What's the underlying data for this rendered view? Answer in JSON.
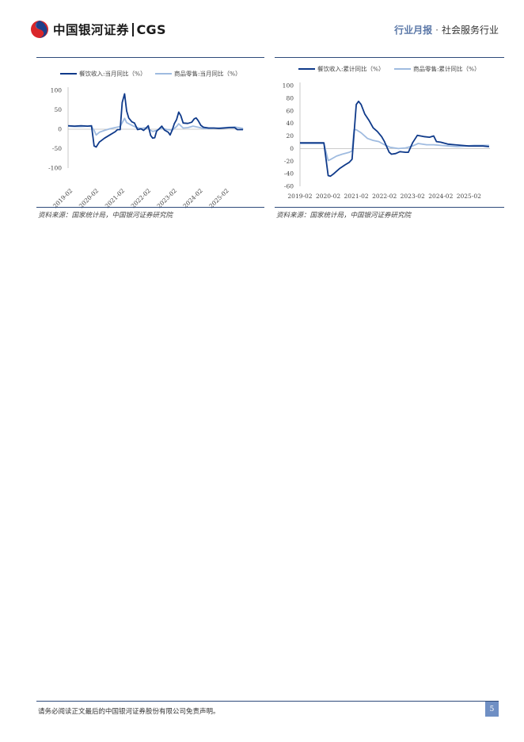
{
  "header": {
    "logo_cn": "中国银河证券",
    "logo_en": "CGS",
    "report_type": "行业月报",
    "dot": "·",
    "industry": "社会服务行业"
  },
  "colors": {
    "dark": "#0f3a8a",
    "light": "#9fbbe0",
    "rule": "#2d4a7a"
  },
  "charts": [
    {
      "source": "资料来源：国家统计局，中国银河证券研究院"
    },
    {
      "source": "资料来源：国家统计局，中国银河证券研究院"
    }
  ],
  "chart_data": [
    {
      "type": "line",
      "ylim": [
        -100,
        100
      ],
      "yticks": [
        100,
        50,
        0,
        -50,
        -100
      ],
      "xrange": [
        2019.0,
        2025.75
      ],
      "xticks": [
        {
          "x": 2019.0,
          "label": "2019-02"
        },
        {
          "x": 2020.0,
          "label": "2020-02"
        },
        {
          "x": 2021.0,
          "label": "2021-02"
        },
        {
          "x": 2022.0,
          "label": "2022-02"
        },
        {
          "x": 2023.0,
          "label": "2023-02"
        },
        {
          "x": 2024.0,
          "label": "2024-02"
        },
        {
          "x": 2025.0,
          "label": "2025-02"
        }
      ],
      "tick_rotation": -45,
      "legend_position": "top",
      "series": [
        {
          "name": "餐饮收入:当月同比（%）",
          "color": "#0f3a8a",
          "points": [
            [
              2019.0,
              9
            ],
            [
              2019.25,
              8
            ],
            [
              2019.5,
              9
            ],
            [
              2019.75,
              8
            ],
            [
              2019.9,
              9
            ],
            [
              2020.0,
              -43
            ],
            [
              2020.08,
              -46
            ],
            [
              2020.2,
              -33
            ],
            [
              2020.4,
              -23
            ],
            [
              2020.6,
              -15
            ],
            [
              2020.8,
              -7
            ],
            [
              2020.9,
              -1
            ],
            [
              2021.0,
              -1
            ],
            [
              2021.08,
              69
            ],
            [
              2021.17,
              91
            ],
            [
              2021.25,
              47
            ],
            [
              2021.33,
              29
            ],
            [
              2021.45,
              19
            ],
            [
              2021.55,
              16
            ],
            [
              2021.67,
              -1
            ],
            [
              2021.8,
              1
            ],
            [
              2021.9,
              -3
            ],
            [
              2022.0,
              3
            ],
            [
              2022.08,
              9
            ],
            [
              2022.17,
              -16
            ],
            [
              2022.25,
              -23
            ],
            [
              2022.33,
              -22
            ],
            [
              2022.4,
              -5
            ],
            [
              2022.5,
              1
            ],
            [
              2022.6,
              8
            ],
            [
              2022.7,
              -2
            ],
            [
              2022.85,
              -8
            ],
            [
              2022.92,
              -15
            ],
            [
              2023.0,
              -2
            ],
            [
              2023.08,
              14
            ],
            [
              2023.17,
              25
            ],
            [
              2023.25,
              44
            ],
            [
              2023.33,
              35
            ],
            [
              2023.42,
              16
            ],
            [
              2023.6,
              15
            ],
            [
              2023.75,
              18
            ],
            [
              2023.85,
              27
            ],
            [
              2023.92,
              29
            ],
            [
              2024.0,
              22
            ],
            [
              2024.1,
              10
            ],
            [
              2024.2,
              5
            ],
            [
              2024.4,
              3
            ],
            [
              2024.6,
              3
            ],
            [
              2024.8,
              2
            ],
            [
              2025.0,
              3
            ],
            [
              2025.2,
              4
            ],
            [
              2025.4,
              4
            ],
            [
              2025.5,
              -1
            ],
            [
              2025.6,
              -1
            ],
            [
              2025.72,
              -1
            ]
          ]
        },
        {
          "name": "商品零售:当月同比（%）",
          "color": "#9fbbe0",
          "points": [
            [
              2019.0,
              8
            ],
            [
              2019.25,
              7
            ],
            [
              2019.5,
              7
            ],
            [
              2019.75,
              8
            ],
            [
              2019.9,
              7
            ],
            [
              2020.0,
              -3
            ],
            [
              2020.08,
              -15
            ],
            [
              2020.2,
              -8
            ],
            [
              2020.4,
              -3
            ],
            [
              2020.6,
              1
            ],
            [
              2020.8,
              4
            ],
            [
              2021.0,
              7
            ],
            [
              2021.17,
              28
            ],
            [
              2021.25,
              17
            ],
            [
              2021.45,
              10
            ],
            [
              2021.6,
              5
            ],
            [
              2021.8,
              2
            ],
            [
              2022.0,
              4
            ],
            [
              2022.25,
              -6
            ],
            [
              2022.4,
              -3
            ],
            [
              2022.6,
              3
            ],
            [
              2022.8,
              -1
            ],
            [
              2023.0,
              -2
            ],
            [
              2023.17,
              7
            ],
            [
              2023.25,
              14
            ],
            [
              2023.42,
              3
            ],
            [
              2023.6,
              4
            ],
            [
              2023.8,
              8
            ],
            [
              2024.0,
              5
            ],
            [
              2024.2,
              2
            ],
            [
              2024.5,
              2
            ],
            [
              2024.75,
              3
            ],
            [
              2025.0,
              4
            ],
            [
              2025.2,
              5
            ],
            [
              2025.4,
              6
            ],
            [
              2025.55,
              4
            ],
            [
              2025.72,
              2
            ]
          ]
        }
      ]
    },
    {
      "type": "line",
      "ylim": [
        -60,
        100
      ],
      "yticks": [
        100,
        80,
        60,
        40,
        20,
        0,
        -20,
        -40,
        -60
      ],
      "xrange": [
        2019.0,
        2025.75
      ],
      "xticks": [
        {
          "x": 2019.0,
          "label": "2019-02"
        },
        {
          "x": 2020.0,
          "label": "2020-02"
        },
        {
          "x": 2021.0,
          "label": "2021-02"
        },
        {
          "x": 2022.0,
          "label": "2022-02"
        },
        {
          "x": 2023.0,
          "label": "2023-02"
        },
        {
          "x": 2024.0,
          "label": "2024-02"
        },
        {
          "x": 2025.0,
          "label": "2025-02"
        }
      ],
      "tick_rotation": 0,
      "legend_position": "top",
      "series": [
        {
          "name": "餐饮收入:累计同比（%）",
          "color": "#0f3a8a",
          "points": [
            [
              2019.0,
              9
            ],
            [
              2019.3,
              9
            ],
            [
              2019.6,
              9
            ],
            [
              2019.85,
              9
            ],
            [
              2020.0,
              -43
            ],
            [
              2020.08,
              -44
            ],
            [
              2020.2,
              -40
            ],
            [
              2020.4,
              -32
            ],
            [
              2020.6,
              -26
            ],
            [
              2020.75,
              -22
            ],
            [
              2020.85,
              -17
            ],
            [
              2021.0,
              70
            ],
            [
              2021.08,
              75
            ],
            [
              2021.17,
              70
            ],
            [
              2021.3,
              55
            ],
            [
              2021.45,
              45
            ],
            [
              2021.6,
              33
            ],
            [
              2021.75,
              27
            ],
            [
              2021.9,
              19
            ],
            [
              2022.0,
              11
            ],
            [
              2022.08,
              3
            ],
            [
              2022.17,
              -6
            ],
            [
              2022.25,
              -9
            ],
            [
              2022.4,
              -8
            ],
            [
              2022.55,
              -5
            ],
            [
              2022.75,
              -6
            ],
            [
              2022.85,
              -6
            ],
            [
              2023.0,
              9
            ],
            [
              2023.17,
              21
            ],
            [
              2023.4,
              19
            ],
            [
              2023.6,
              18
            ],
            [
              2023.75,
              20
            ],
            [
              2023.85,
              11
            ],
            [
              2024.0,
              10
            ],
            [
              2024.25,
              7
            ],
            [
              2024.5,
              6
            ],
            [
              2024.75,
              5
            ],
            [
              2025.0,
              4
            ],
            [
              2025.3,
              4
            ],
            [
              2025.5,
              4
            ],
            [
              2025.72,
              3
            ]
          ]
        },
        {
          "name": "商品零售:累计同比（%）",
          "color": "#9fbbe0",
          "points": [
            [
              2019.0,
              8
            ],
            [
              2019.3,
              8
            ],
            [
              2019.6,
              8
            ],
            [
              2019.85,
              8
            ],
            [
              2020.0,
              -19
            ],
            [
              2020.1,
              -17
            ],
            [
              2020.3,
              -12
            ],
            [
              2020.5,
              -9
            ],
            [
              2020.75,
              -6
            ],
            [
              2020.85,
              -4
            ],
            [
              2020.92,
              30
            ],
            [
              2021.0,
              30
            ],
            [
              2021.17,
              25
            ],
            [
              2021.4,
              16
            ],
            [
              2021.6,
              13
            ],
            [
              2021.8,
              11
            ],
            [
              2022.0,
              6
            ],
            [
              2022.2,
              2
            ],
            [
              2022.5,
              0
            ],
            [
              2022.75,
              1
            ],
            [
              2023.0,
              4
            ],
            [
              2023.2,
              8
            ],
            [
              2023.5,
              6
            ],
            [
              2023.75,
              6
            ],
            [
              2024.0,
              5
            ],
            [
              2024.3,
              4
            ],
            [
              2024.6,
              3
            ],
            [
              2024.9,
              4
            ],
            [
              2025.2,
              5
            ],
            [
              2025.5,
              5
            ],
            [
              2025.72,
              5
            ]
          ]
        }
      ]
    }
  ],
  "footer": {
    "disclaimer": "请务必阅读正文最后的中国银河证券股份有限公司免责声明。",
    "page": "5"
  }
}
